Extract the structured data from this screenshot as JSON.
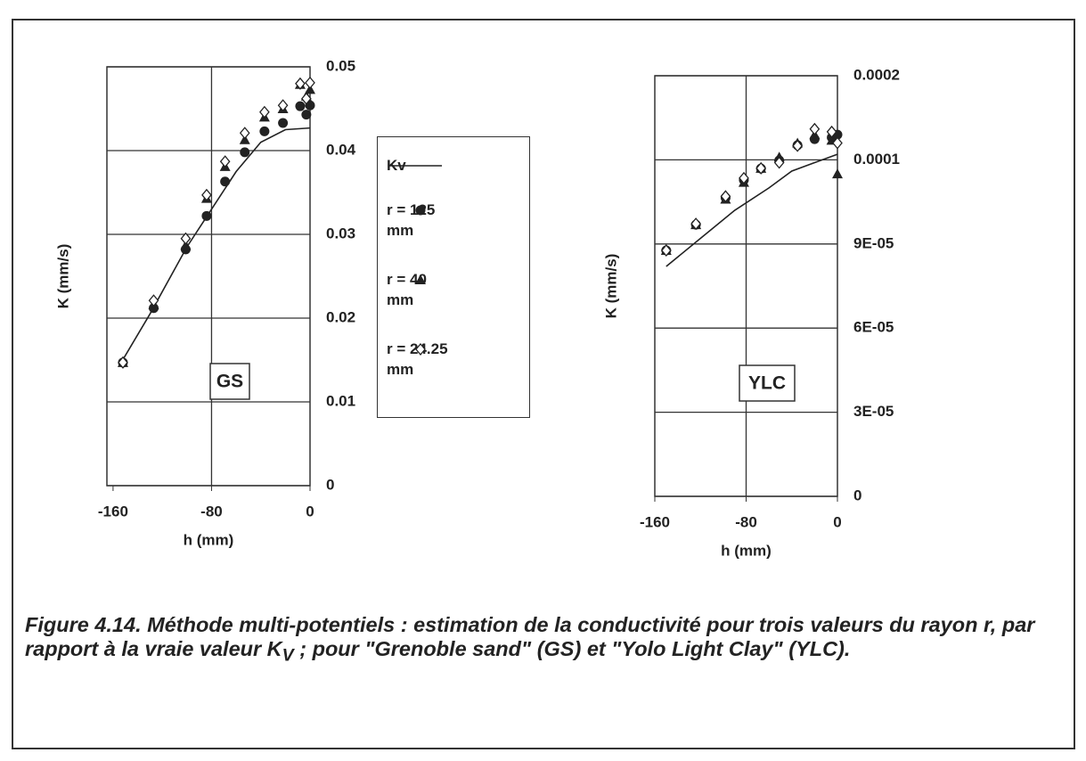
{
  "chart_data": [
    {
      "type": "scatter",
      "ylabel": "K (mm/s)",
      "xlabel": "h (mm)",
      "annotation": "GS",
      "xlim": [
        -165,
        0
      ],
      "xticks": [
        -160,
        -80,
        0
      ],
      "xgrid": [
        -80
      ],
      "ylim": [
        0,
        0.05
      ],
      "yticks": [
        0,
        0.01,
        0.02,
        0.03,
        0.04,
        0.05
      ],
      "grid": true,
      "x": [
        -152,
        -127,
        -101,
        -84,
        -69,
        -53,
        -37,
        -22,
        -8,
        -3,
        0
      ],
      "series": [
        {
          "name": "Kv",
          "kind": "line",
          "color": "#222222",
          "x": [
            -155,
            -130,
            -100,
            -80,
            -60,
            -40,
            -20,
            0
          ],
          "values": [
            0.0143,
            0.0205,
            0.0285,
            0.033,
            0.0375,
            0.041,
            0.0425,
            0.0427
          ]
        },
        {
          "name": "r = 125 mm",
          "marker": "circle",
          "color": "#222222",
          "values": [
            0.0147,
            0.0212,
            0.0282,
            0.0322,
            0.0363,
            0.0398,
            0.0423,
            0.0433,
            0.0453,
            0.0443,
            0.0454
          ]
        },
        {
          "name": "r = 40 mm",
          "marker": "triangle",
          "color": "#222222",
          "values": [
            0.0147,
            0.0216,
            0.0287,
            0.0343,
            0.0381,
            0.0413,
            0.044,
            0.045,
            0.0479,
            0.0465,
            0.0473
          ]
        },
        {
          "name": "r = 24.25 mm",
          "marker": "diamond",
          "color": "#222222",
          "values": [
            0.0147,
            0.0221,
            0.0295,
            0.0347,
            0.0387,
            0.0421,
            0.0446,
            0.0454,
            0.048,
            0.0462,
            0.0481
          ]
        }
      ]
    },
    {
      "type": "scatter",
      "ylabel": "K (mm/s)",
      "xlabel": "h (mm)",
      "annotation": "YLC",
      "xlim": [
        -160,
        0
      ],
      "xticks": [
        -160,
        -80,
        0
      ],
      "xgrid": [
        -80
      ],
      "ylim": [
        0,
        0.00015
      ],
      "yticks": [
        0,
        {
          "value": 3e-05,
          "label": "3E-05"
        },
        {
          "value": 6e-05,
          "label": "6E-05"
        },
        {
          "value": 9e-05,
          "label": "9E-05"
        },
        {
          "value": 0.00012,
          "label": "0.0001"
        },
        {
          "value": 0.00015,
          "label": "0.0002"
        }
      ],
      "grid": true,
      "x": [
        -150,
        -124,
        -98,
        -82,
        -67,
        -51,
        -35,
        -20,
        -5,
        0
      ],
      "series": [
        {
          "kind": "line",
          "color": "#222222",
          "x": [
            -150,
            -120,
            -90,
            -60,
            -40,
            -20,
            0
          ],
          "values": [
            8.2e-05,
            9.2e-05,
            0.000102,
            0.00011,
            0.000116,
            0.000119,
            0.000122
          ]
        },
        {
          "marker": "circle",
          "color": "#222222",
          "values": [
            8.77e-05,
            9.69e-05,
            0.0001065,
            0.0001128,
            0.0001169,
            0.0001198,
            0.0001252,
            0.0001274,
            0.000128,
            0.000129
          ]
        },
        {
          "marker": "triangle",
          "color": "#222222",
          "values": [
            8.77e-05,
            9.69e-05,
            0.000106,
            0.000112,
            0.000117,
            0.000121,
            0.000126,
            0.000129,
            0.000127,
            0.000115
          ]
        },
        {
          "marker": "diamond",
          "color": "#222222",
          "values": [
            8.77e-05,
            9.72e-05,
            0.000107,
            0.0001135,
            0.000117,
            0.000119,
            0.000125,
            0.000131,
            0.00013,
            0.000126
          ]
        }
      ]
    }
  ],
  "caption": {
    "before": "Figure 4.14. Méthode multi-potentiels : estimation de la conductivité pour trois valeurs du rayon r, par rapport à la vraie valeur K",
    "subscript": "V",
    "after": " ; pour \"Grenoble sand\" (GS) et \"Yolo Light Clay\" (YLC)."
  }
}
